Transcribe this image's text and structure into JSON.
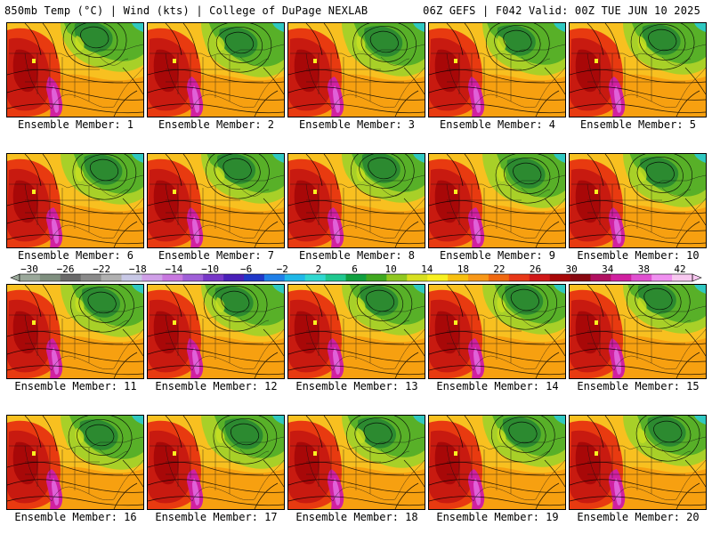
{
  "header": {
    "left": "850mb Temp (°C) | Wind (kts) | College of DuPage NEXLAB",
    "right": "06Z GEFS | F042 Valid: 00Z TUE JUN 10 2025"
  },
  "panels": [
    {
      "label": "Ensemble Member: 1"
    },
    {
      "label": "Ensemble Member: 2"
    },
    {
      "label": "Ensemble Member: 3"
    },
    {
      "label": "Ensemble Member: 4"
    },
    {
      "label": "Ensemble Member: 5"
    },
    {
      "label": "Ensemble Member: 6"
    },
    {
      "label": "Ensemble Member: 7"
    },
    {
      "label": "Ensemble Member: 8"
    },
    {
      "label": "Ensemble Member: 9"
    },
    {
      "label": "Ensemble Member: 10"
    },
    {
      "label": "Ensemble Member: 11"
    },
    {
      "label": "Ensemble Member: 12"
    },
    {
      "label": "Ensemble Member: 13"
    },
    {
      "label": "Ensemble Member: 14"
    },
    {
      "label": "Ensemble Member: 15"
    },
    {
      "label": "Ensemble Member: 16"
    },
    {
      "label": "Ensemble Member: 17"
    },
    {
      "label": "Ensemble Member: 18"
    },
    {
      "label": "Ensemble Member: 19"
    },
    {
      "label": "Ensemble Member: 20"
    }
  ],
  "colorbar": {
    "tick_labels": [
      "−30",
      "−26",
      "−22",
      "−18",
      "−14",
      "−10",
      "−6",
      "−2",
      "2",
      "6",
      "10",
      "14",
      "18",
      "22",
      "26",
      "30",
      "34",
      "38",
      "42"
    ],
    "colors": [
      "#9aa89a",
      "#7f8f7f",
      "#6a6a6a",
      "#8a8a8a",
      "#b0b0b0",
      "#c8c8e6",
      "#d0a0e8",
      "#c878e0",
      "#a060d8",
      "#7838c8",
      "#4a20b8",
      "#2038c8",
      "#2080e8",
      "#20b8e8",
      "#30d8d0",
      "#20c890",
      "#10a040",
      "#40a820",
      "#90c820",
      "#d8e020",
      "#f8f020",
      "#f8c010",
      "#f89818",
      "#f06810",
      "#e83818",
      "#d01818",
      "#a80808",
      "#880810",
      "#b01060",
      "#d020a0",
      "#e050d0",
      "#f090f0",
      "#f8c8f0"
    ]
  }
}
